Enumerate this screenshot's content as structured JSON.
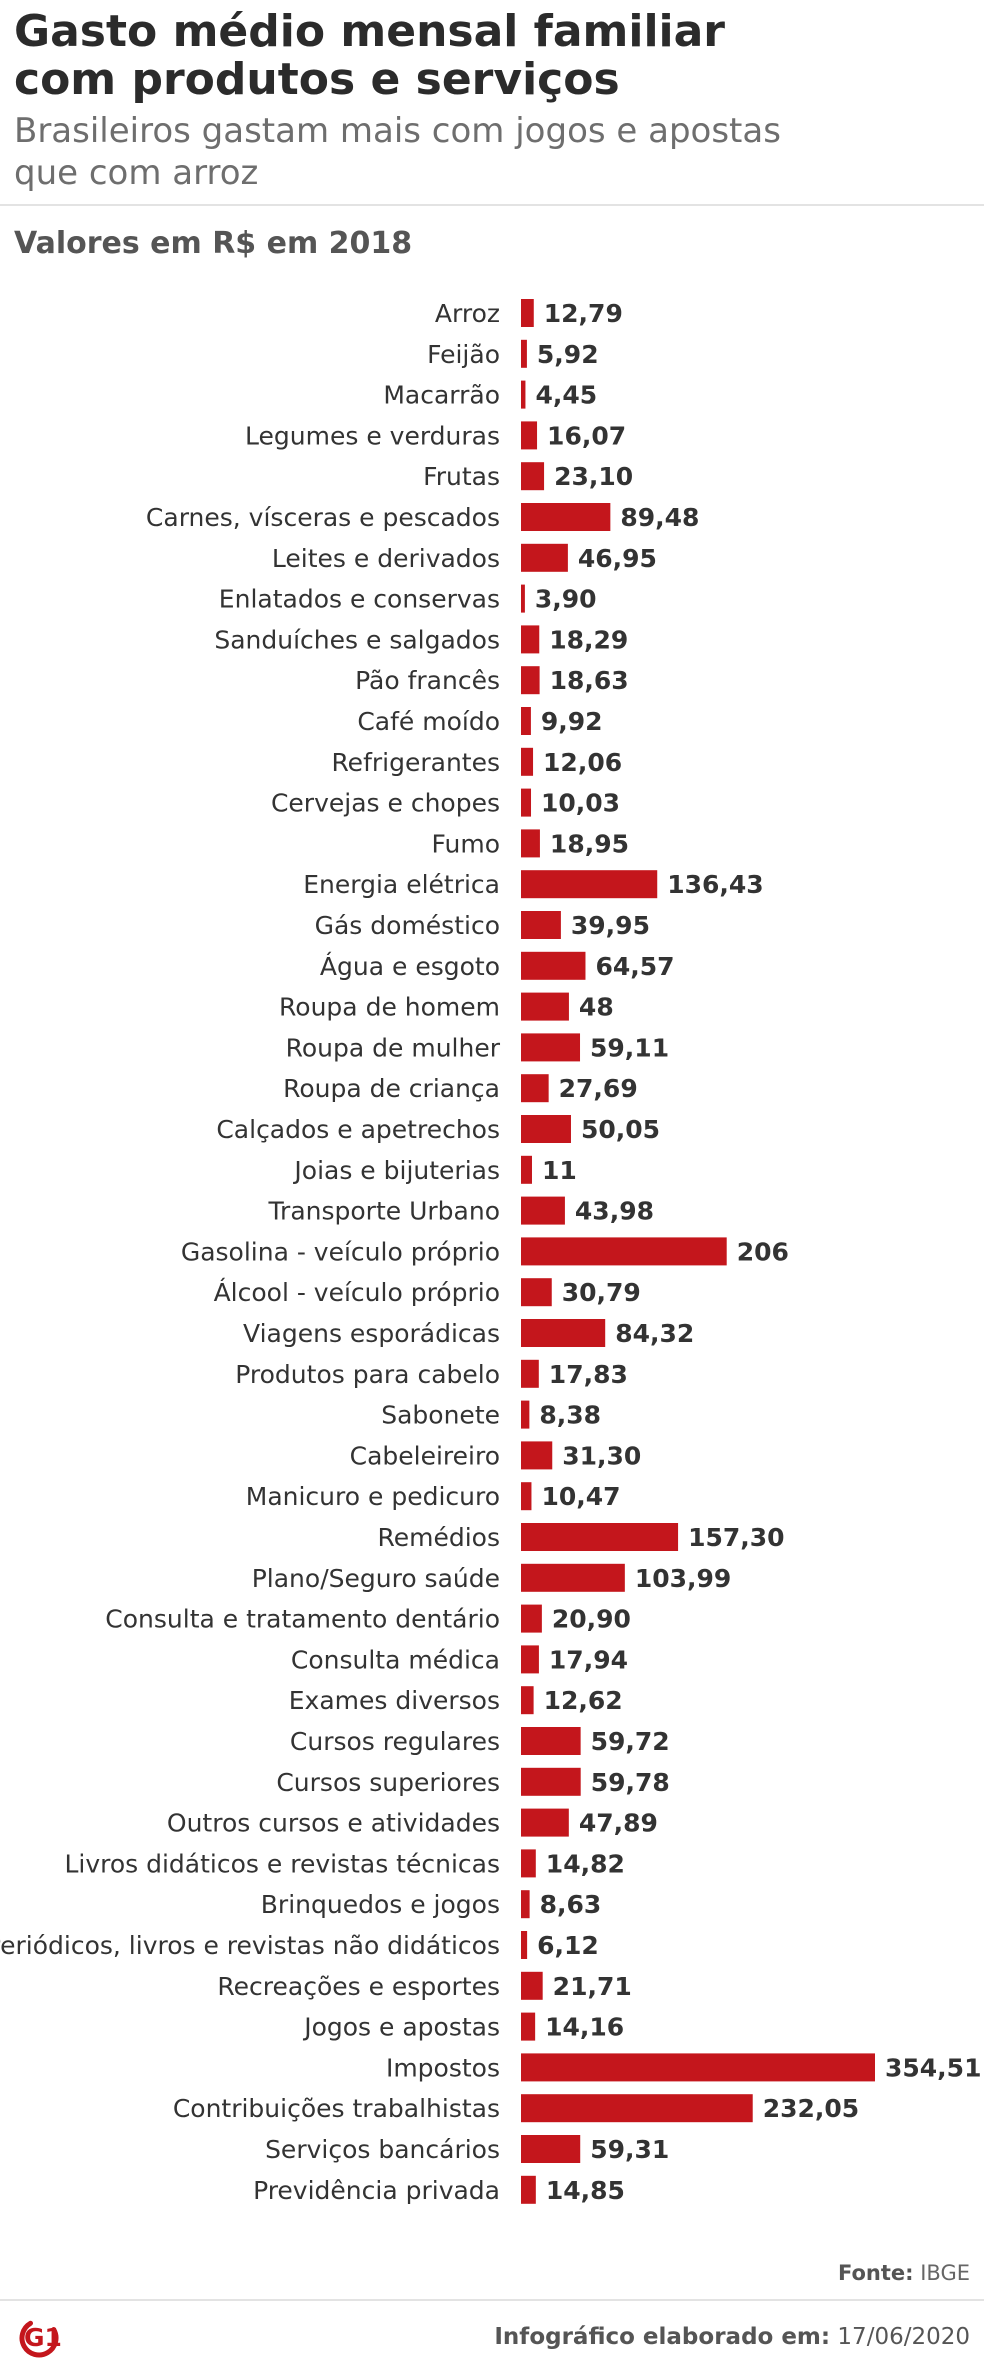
{
  "header": {
    "title_line1": "Gasto médio mensal familiar",
    "title_line2": "com produtos e serviços",
    "subtitle_line1": "Brasileiros gastam mais com jogos e apostas",
    "subtitle_line2": "que com arroz",
    "unit_label": "Valores em R$ em 2018"
  },
  "footer": {
    "source_label": "Fonte:",
    "source_value": "IBGE",
    "credit_label": "Infográfico elaborado em:",
    "credit_date": "17/06/2020",
    "logo_text": "G1"
  },
  "colors": {
    "bar": "#c4161c",
    "logo": "#c4161c"
  },
  "chart_data": {
    "type": "bar",
    "orientation": "horizontal",
    "title": "Gasto médio mensal familiar com produtos e serviços",
    "subtitle": "Brasileiros gastam mais com jogos e apostas que com arroz",
    "xlabel": "",
    "ylabel": "",
    "unit": "Valores em R$ em 2018",
    "grid": false,
    "legend": "none",
    "xlim": [
      0,
      354.51
    ],
    "categories": [
      "Arroz",
      "Feijão",
      "Macarrão",
      "Legumes e verduras",
      "Frutas",
      "Carnes, vísceras e pescados",
      "Leites e derivados",
      "Enlatados e conservas",
      "Sanduíches e salgados",
      "Pão francês",
      "Café moído",
      "Refrigerantes",
      "Cervejas e chopes",
      "Fumo",
      "Energia elétrica",
      "Gás doméstico",
      "Água e esgoto",
      "Roupa de homem",
      "Roupa de mulher",
      "Roupa de criança",
      "Calçados e apetrechos",
      "Joias e bijuterias",
      "Transporte Urbano",
      "Gasolina - veículo próprio",
      "Álcool - veículo próprio",
      "Viagens esporádicas",
      "Produtos para cabelo",
      "Sabonete",
      "Cabeleireiro",
      "Manicuro e pedicuro",
      "Remédios",
      "Plano/Seguro saúde",
      "Consulta e tratamento dentário",
      "Consulta médica",
      "Exames diversos",
      "Cursos regulares",
      "Cursos superiores",
      "Outros cursos e atividades",
      "Livros didáticos e revistas técnicas",
      "Brinquedos e jogos",
      "Periódicos, livros e revistas não didáticos",
      "Recreações e esportes",
      "Jogos e apostas",
      "Impostos",
      "Contribuições trabalhistas",
      "Serviços bancários",
      "Previdência privada"
    ],
    "values": [
      12.79,
      5.92,
      4.45,
      16.07,
      23.1,
      89.48,
      46.95,
      3.9,
      18.29,
      18.63,
      9.92,
      12.06,
      10.03,
      18.95,
      136.43,
      39.95,
      64.57,
      48,
      59.11,
      27.69,
      50.05,
      11,
      43.98,
      206,
      30.79,
      84.32,
      17.83,
      8.38,
      31.3,
      10.47,
      157.3,
      103.99,
      20.9,
      17.94,
      12.62,
      59.72,
      59.78,
      47.89,
      14.82,
      8.63,
      6.12,
      21.71,
      14.16,
      354.51,
      232.05,
      59.31,
      14.85
    ],
    "value_labels": [
      "12,79",
      "5,92",
      "4,45",
      "16,07",
      "23,10",
      "89,48",
      "46,95",
      "3,90",
      "18,29",
      "18,63",
      "9,92",
      "12,06",
      "10,03",
      "18,95",
      "136,43",
      "39,95",
      "64,57",
      "48",
      "59,11",
      "27,69",
      "50,05",
      "11",
      "43,98",
      "206",
      "30,79",
      "84,32",
      "17,83",
      "8,38",
      "31,30",
      "10,47",
      "157,30",
      "103,99",
      "20,90",
      "17,94",
      "12,62",
      "59,72",
      "59,78",
      "47,89",
      "14,82",
      "8,63",
      "6,12",
      "21,71",
      "14,16",
      "354,51",
      "232,05",
      "59,31",
      "14,85"
    ]
  }
}
